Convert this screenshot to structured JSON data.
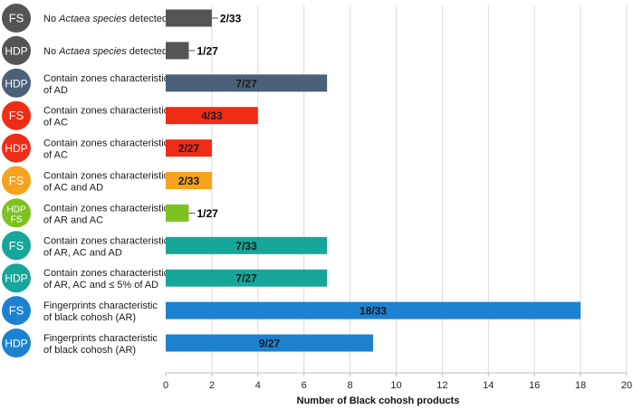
{
  "chart_data": {
    "type": "bar",
    "orientation": "horizontal",
    "xlabel": "Number of Black cohosh products",
    "xlim": [
      0,
      20
    ],
    "xticks": [
      0,
      2,
      4,
      6,
      8,
      10,
      12,
      14,
      16,
      18,
      20
    ],
    "grid": "vertical",
    "rows": [
      {
        "badge": [
          "FS"
        ],
        "badge_color": "#555555",
        "label": [
          [
            {
              "t": "No "
            },
            {
              "t": "Actaea species",
              "i": true
            },
            {
              "t": " detected"
            }
          ]
        ],
        "value": 2,
        "data_label": "2/33",
        "bar_color": "#555555",
        "label_position": "outside"
      },
      {
        "badge": [
          "HDP"
        ],
        "badge_color": "#555555",
        "label": [
          [
            {
              "t": "No "
            },
            {
              "t": "Actaea species",
              "i": true
            },
            {
              "t": " detected"
            }
          ]
        ],
        "value": 1,
        "data_label": "1/27",
        "bar_color": "#555555",
        "label_position": "outside"
      },
      {
        "badge": [
          "HDP"
        ],
        "badge_color": "#4a6178",
        "label": [
          [
            {
              "t": "Contain zones characteristic"
            }
          ],
          [
            {
              "t": "of AD"
            }
          ]
        ],
        "value": 7,
        "data_label": "7/27",
        "bar_color": "#4a6178",
        "label_position": "inside"
      },
      {
        "badge": [
          "FS"
        ],
        "badge_color": "#ef2d16",
        "label": [
          [
            {
              "t": "Contain zones characteristic"
            }
          ],
          [
            {
              "t": "of AC"
            }
          ]
        ],
        "value": 4,
        "data_label": "4/33",
        "bar_color": "#ef2d16",
        "label_position": "inside"
      },
      {
        "badge": [
          "HDP"
        ],
        "badge_color": "#ef2d16",
        "label": [
          [
            {
              "t": "Contain zones characteristic"
            }
          ],
          [
            {
              "t": "of AC"
            }
          ]
        ],
        "value": 2,
        "data_label": "2/27",
        "bar_color": "#ef2d16",
        "label_position": "inside"
      },
      {
        "badge": [
          "FS"
        ],
        "badge_color": "#f6a21d",
        "label": [
          [
            {
              "t": "Contain zones characteristic"
            }
          ],
          [
            {
              "t": "of AC and AD"
            }
          ]
        ],
        "value": 2,
        "data_label": "2/33",
        "bar_color": "#f6a21d",
        "label_position": "inside"
      },
      {
        "badge": [
          "HDP",
          "FS"
        ],
        "badge_color": "#7dc221",
        "label": [
          [
            {
              "t": "Contain zones characteristic"
            }
          ],
          [
            {
              "t": "of AR and AC"
            }
          ]
        ],
        "value": 1,
        "data_label": "1/27",
        "bar_color": "#7dc221",
        "label_position": "outside"
      },
      {
        "badge": [
          "FS"
        ],
        "badge_color": "#17a69a",
        "label": [
          [
            {
              "t": "Contain zones characteristic"
            }
          ],
          [
            {
              "t": "of AR, AC and AD"
            }
          ]
        ],
        "value": 7,
        "data_label": "7/33",
        "bar_color": "#17a69a",
        "label_position": "inside"
      },
      {
        "badge": [
          "HDP"
        ],
        "badge_color": "#17a69a",
        "label": [
          [
            {
              "t": "Contain zones characteristic"
            }
          ],
          [
            {
              "t": "of AR, AC and ≤ 5% of AD"
            }
          ]
        ],
        "value": 7,
        "data_label": "7/27",
        "bar_color": "#17a69a",
        "label_position": "inside"
      },
      {
        "badge": [
          "FS"
        ],
        "badge_color": "#1c82cf",
        "label": [
          [
            {
              "t": "Fingerprints characteristic"
            }
          ],
          [
            {
              "t": "of black cohosh (AR)"
            }
          ]
        ],
        "value": 18,
        "data_label": "18/33",
        "bar_color": "#1c82cf",
        "label_position": "inside"
      },
      {
        "badge": [
          "HDP"
        ],
        "badge_color": "#1c82cf",
        "label": [
          [
            {
              "t": "Fingerprints characteristic"
            }
          ],
          [
            {
              "t": "of black cohosh (AR)"
            }
          ]
        ],
        "value": 9,
        "data_label": "9/27",
        "bar_color": "#1c82cf",
        "label_position": "inside"
      }
    ]
  }
}
